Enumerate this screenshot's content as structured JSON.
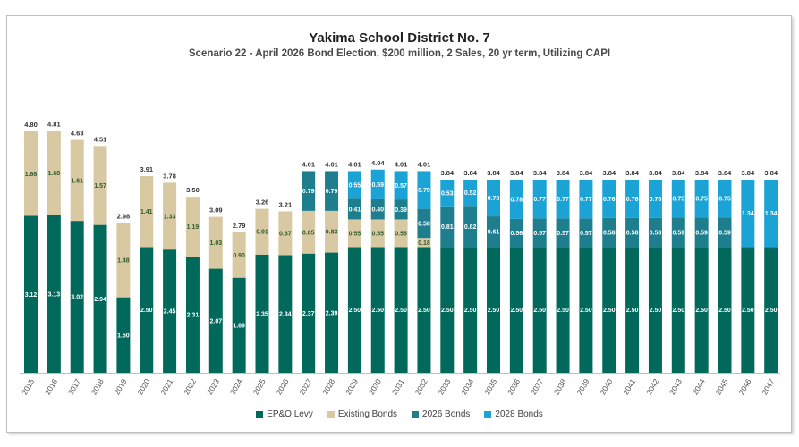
{
  "chart_data": {
    "type": "bar",
    "stacked": true,
    "title": "Yakima School District No. 7",
    "subtitle": "Scenario 22 - April 2026 Bond Election, $200 million, 2 Sales, 20 yr term, Utilizing CAPI",
    "categories": [
      "2015",
      "2016",
      "2017",
      "2018",
      "2019",
      "2020",
      "2021",
      "2022",
      "2023",
      "2024",
      "2025",
      "2026",
      "2027",
      "2028",
      "2029",
      "2030",
      "2031",
      "2032",
      "2033",
      "2034",
      "2035",
      "2036",
      "2037",
      "2038",
      "2039",
      "2040",
      "2041",
      "2042",
      "2043",
      "2044",
      "2045",
      "2046",
      "2047"
    ],
    "totals": [
      "4.80",
      "4.81",
      "4.63",
      "4.51",
      "2.98",
      "3.91",
      "3.78",
      "3.50",
      "3.09",
      "2.79",
      "3.26",
      "3.21",
      "4.01",
      "4.01",
      "4.01",
      "4.04",
      "4.01",
      "4.01",
      "3.84",
      "3.84",
      "3.84",
      "3.84",
      "3.84",
      "3.84",
      "3.84",
      "3.84",
      "3.84",
      "3.84",
      "3.84",
      "3.84",
      "3.84",
      "3.84",
      "3.84"
    ],
    "ylim": [
      0,
      5.8
    ],
    "legend_position": "bottom",
    "grid": false,
    "series": [
      {
        "name": "EP&O Levy",
        "color": "#00695c",
        "label_color": "#ffffff",
        "values": [
          3.12,
          3.13,
          3.02,
          2.94,
          1.5,
          2.5,
          2.45,
          2.31,
          2.07,
          1.89,
          2.35,
          2.34,
          2.37,
          2.39,
          2.5,
          2.5,
          2.5,
          2.5,
          2.5,
          2.5,
          2.5,
          2.5,
          2.5,
          2.5,
          2.5,
          2.5,
          2.5,
          2.5,
          2.5,
          2.5,
          2.5,
          2.5,
          2.5
        ]
      },
      {
        "name": "Existing Bonds",
        "color": "#d9c9a3",
        "label_color": "#2e5d2e",
        "values": [
          1.68,
          1.68,
          1.61,
          1.57,
          1.48,
          1.41,
          1.33,
          1.19,
          1.03,
          0.9,
          0.91,
          0.87,
          0.85,
          0.83,
          0.55,
          0.55,
          0.55,
          0.18,
          null,
          null,
          null,
          null,
          null,
          null,
          null,
          null,
          null,
          null,
          null,
          null,
          null,
          null,
          null
        ]
      },
      {
        "name": "2026 Bonds",
        "color": "#1e7e8e",
        "label_color": "#ffffff",
        "values": [
          null,
          null,
          null,
          null,
          null,
          null,
          null,
          null,
          null,
          null,
          null,
          null,
          0.79,
          0.79,
          0.41,
          0.4,
          0.39,
          0.58,
          0.81,
          0.82,
          0.61,
          0.56,
          0.57,
          0.57,
          0.57,
          0.58,
          0.58,
          0.58,
          0.59,
          0.59,
          0.59,
          null,
          null
        ]
      },
      {
        "name": "2028 Bonds",
        "color": "#1ba3d6",
        "label_color": "#ffffff",
        "values": [
          null,
          null,
          null,
          null,
          null,
          null,
          null,
          null,
          null,
          null,
          null,
          null,
          null,
          null,
          0.55,
          0.59,
          0.57,
          0.75,
          0.53,
          0.52,
          0.73,
          0.78,
          0.77,
          0.77,
          0.77,
          0.76,
          0.76,
          0.76,
          0.75,
          0.75,
          0.75,
          1.34,
          1.34
        ]
      }
    ]
  }
}
